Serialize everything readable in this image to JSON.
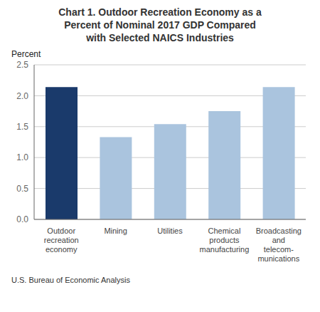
{
  "chart_data": {
    "type": "bar",
    "title": "Chart 1. Outdoor Recreation Economy as a\nPercent of Nominal 2017 GDP Compared\nwith Selected NAICS Industries",
    "y_label": "Percent",
    "categories": [
      "Outdoor\nrecreation\neconomy",
      "Mining",
      "Utilities",
      "Chemical\nproducts\nmanufacturing",
      "Broadcasting\nand\ntelecom-\nmunications"
    ],
    "values": [
      2.14,
      1.33,
      1.54,
      1.75,
      2.14
    ],
    "colors": [
      "#1a3a6b",
      "#aac4de",
      "#aac4de",
      "#aac4de",
      "#aac4de"
    ],
    "ylim": [
      0,
      2.5
    ],
    "yticks": [
      {
        "value": 0,
        "label": "0.0"
      },
      0.5,
      {
        "value": 1,
        "label": "1.0"
      },
      1.5,
      {
        "value": 2,
        "label": "2.0"
      },
      2.5
    ],
    "grid": true,
    "footnote": "U.S. Bureau of Economic Analysis"
  }
}
